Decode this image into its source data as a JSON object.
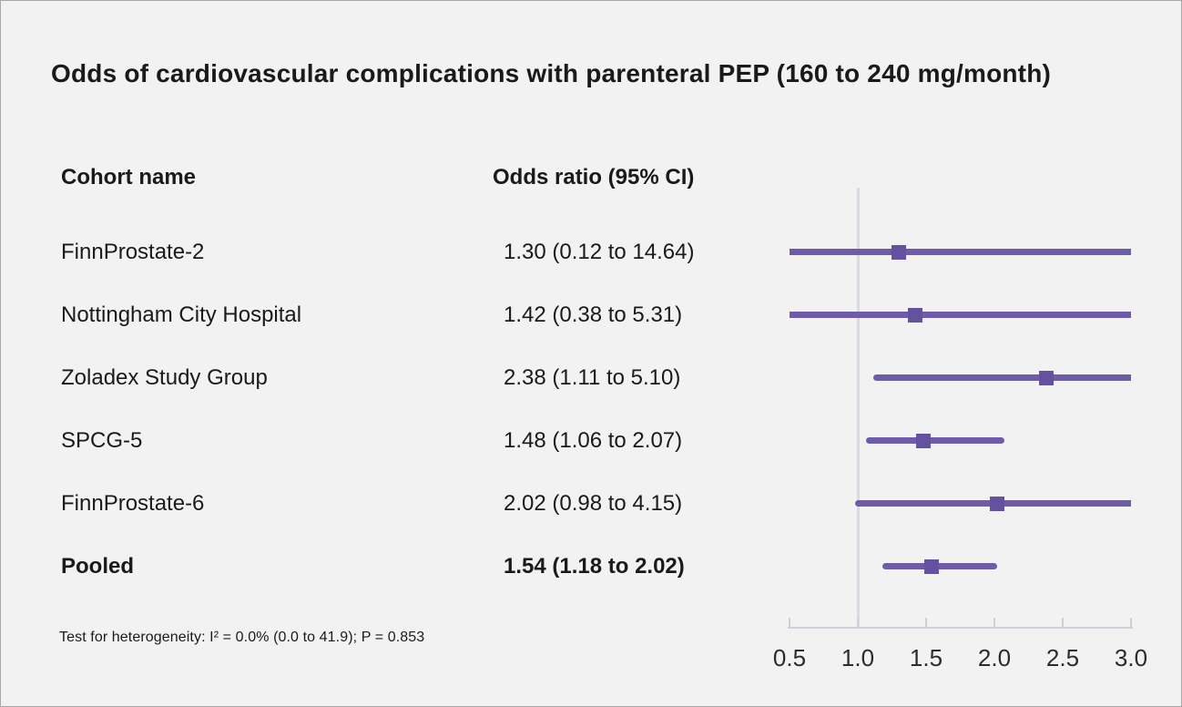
{
  "figure": {
    "title": "Odds of cardiovascular complications with parenteral PEP (160 to 240 mg/month)",
    "footnote": "Test for heterogeneity: I² = 0.0% (0.0 to 41.9); P = 0.853"
  },
  "table": {
    "cohort_header": "Cohort name",
    "or_header": "Odds ratio (95% CI)"
  },
  "chart_data": {
    "type": "forest",
    "x_axis": {
      "xlim": [
        0.5,
        3.0
      ],
      "reference_line": 1.0
    },
    "ticks": [
      {
        "value": 0.5,
        "label": "0.5"
      },
      {
        "value": 1.0,
        "label": "1.0"
      },
      {
        "value": 1.5,
        "label": "1.5"
      },
      {
        "value": 2.0,
        "label": "2.0"
      },
      {
        "value": 2.5,
        "label": "2.5"
      },
      {
        "value": 3.0,
        "label": "3.0"
      }
    ],
    "rows": [
      {
        "name": "FinnProstate-2",
        "or": 1.3,
        "ci_low": 0.12,
        "ci_high": 14.64,
        "or_label": "1.30 (0.12 to 14.64)",
        "bold": false
      },
      {
        "name": "Nottingham City Hospital",
        "or": 1.42,
        "ci_low": 0.38,
        "ci_high": 5.31,
        "or_label": "1.42 (0.38 to 5.31)",
        "bold": false
      },
      {
        "name": "Zoladex Study Group",
        "or": 2.38,
        "ci_low": 1.11,
        "ci_high": 5.1,
        "or_label": "2.38 (1.11 to 5.10)",
        "bold": false
      },
      {
        "name": "SPCG-5",
        "or": 1.48,
        "ci_low": 1.06,
        "ci_high": 2.07,
        "or_label": "1.48 (1.06 to 2.07)",
        "bold": false
      },
      {
        "name": "FinnProstate-6",
        "or": 2.02,
        "ci_low": 0.98,
        "ci_high": 4.15,
        "or_label": "2.02 (0.98 to 4.15)",
        "bold": false
      },
      {
        "name": "Pooled",
        "or": 1.54,
        "ci_low": 1.18,
        "ci_high": 2.02,
        "or_label": "1.54 (1.18 to 2.02)",
        "bold": true
      }
    ],
    "colors": {
      "ci_line": "#6e5caa",
      "marker": "#64519f",
      "reference_line": "#d7dbe3",
      "axis": "#ccd1db",
      "background": "#f2f2f2",
      "text": "#1a1a1a"
    }
  }
}
